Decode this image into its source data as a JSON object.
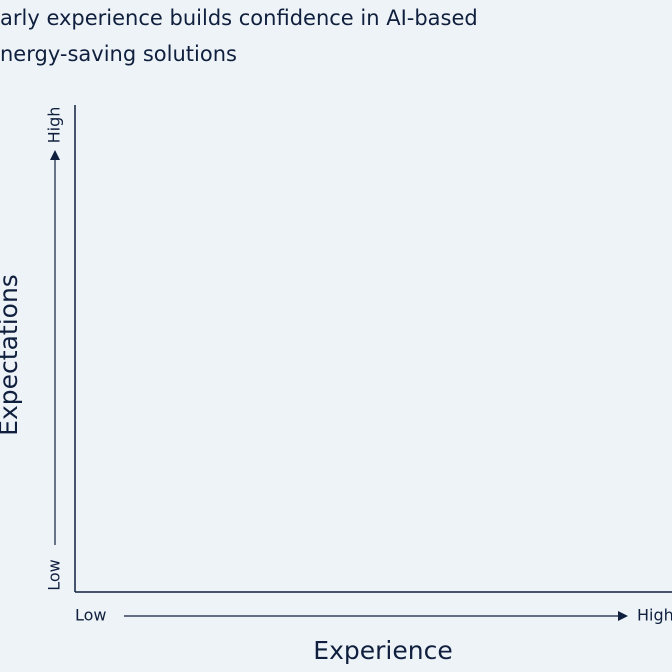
{
  "chart_data": {
    "type": "quadrant",
    "title_lines": [
      "arly experience builds confidence in AI-based",
      "nergy-saving solutions"
    ],
    "x_label": "Experience",
    "y_label": "Expectations",
    "x_low_label": "Low",
    "x_high_label": "High",
    "y_low_label": "Low",
    "y_high_label": "High"
  }
}
